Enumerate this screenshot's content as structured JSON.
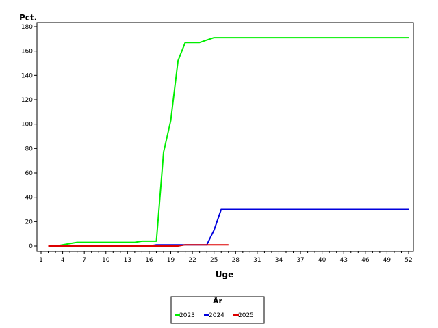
{
  "chart_data": {
    "type": "line",
    "title": "",
    "xlabel": "Uge",
    "ylabel": "Pct.",
    "xlim": [
      0.5,
      52.5
    ],
    "ylim": [
      0,
      180
    ],
    "x_ticks": [
      1,
      4,
      7,
      10,
      13,
      16,
      19,
      22,
      25,
      28,
      31,
      34,
      37,
      40,
      43,
      46,
      49,
      52
    ],
    "y_ticks": [
      0,
      20,
      40,
      60,
      80,
      100,
      120,
      140,
      160,
      180
    ],
    "grid": false,
    "legend": {
      "title": "År",
      "position": "bottom-center",
      "entries": [
        "2023",
        "2024",
        "2025"
      ]
    },
    "series": [
      {
        "name": "2023",
        "color": "#00ee00",
        "points": [
          [
            2,
            0
          ],
          [
            3,
            0
          ],
          [
            4,
            1
          ],
          [
            5,
            2
          ],
          [
            6,
            3
          ],
          [
            7,
            3
          ],
          [
            8,
            3
          ],
          [
            9,
            3
          ],
          [
            10,
            3
          ],
          [
            11,
            3
          ],
          [
            12,
            3
          ],
          [
            13,
            3
          ],
          [
            14,
            3
          ],
          [
            15,
            4
          ],
          [
            16,
            4
          ],
          [
            17,
            4
          ],
          [
            18,
            77
          ],
          [
            19,
            103
          ],
          [
            20,
            152
          ],
          [
            21,
            167
          ],
          [
            22,
            167
          ],
          [
            23,
            167
          ],
          [
            24,
            169
          ],
          [
            25,
            171
          ],
          [
            26,
            171
          ],
          [
            27,
            171
          ],
          [
            28,
            171
          ],
          [
            29,
            171
          ],
          [
            30,
            171
          ],
          [
            31,
            171
          ],
          [
            32,
            171
          ],
          [
            33,
            171
          ],
          [
            34,
            171
          ],
          [
            35,
            171
          ],
          [
            36,
            171
          ],
          [
            37,
            171
          ],
          [
            38,
            171
          ],
          [
            39,
            171
          ],
          [
            40,
            171
          ],
          [
            41,
            171
          ],
          [
            42,
            171
          ],
          [
            43,
            171
          ],
          [
            44,
            171
          ],
          [
            45,
            171
          ],
          [
            46,
            171
          ],
          [
            47,
            171
          ],
          [
            48,
            171
          ],
          [
            49,
            171
          ],
          [
            50,
            171
          ],
          [
            51,
            171
          ],
          [
            52,
            171
          ]
        ]
      },
      {
        "name": "2024",
        "color": "#0000dd",
        "points": [
          [
            2,
            0
          ],
          [
            3,
            0
          ],
          [
            4,
            0
          ],
          [
            5,
            0
          ],
          [
            6,
            0
          ],
          [
            7,
            0
          ],
          [
            8,
            0
          ],
          [
            9,
            0
          ],
          [
            10,
            0
          ],
          [
            11,
            0
          ],
          [
            12,
            0
          ],
          [
            13,
            0
          ],
          [
            14,
            0
          ],
          [
            15,
            0
          ],
          [
            16,
            0
          ],
          [
            17,
            1
          ],
          [
            18,
            1
          ],
          [
            19,
            1
          ],
          [
            20,
            1
          ],
          [
            21,
            1
          ],
          [
            22,
            1
          ],
          [
            23,
            1
          ],
          [
            24,
            1
          ],
          [
            25,
            13
          ],
          [
            26,
            30
          ],
          [
            27,
            30
          ],
          [
            28,
            30
          ],
          [
            29,
            30
          ],
          [
            30,
            30
          ],
          [
            31,
            30
          ],
          [
            32,
            30
          ],
          [
            33,
            30
          ],
          [
            34,
            30
          ],
          [
            35,
            30
          ],
          [
            36,
            30
          ],
          [
            37,
            30
          ],
          [
            38,
            30
          ],
          [
            39,
            30
          ],
          [
            40,
            30
          ],
          [
            41,
            30
          ],
          [
            42,
            30
          ],
          [
            43,
            30
          ],
          [
            44,
            30
          ],
          [
            45,
            30
          ],
          [
            46,
            30
          ],
          [
            47,
            30
          ],
          [
            48,
            30
          ],
          [
            49,
            30
          ],
          [
            50,
            30
          ],
          [
            51,
            30
          ],
          [
            52,
            30
          ]
        ]
      },
      {
        "name": "2025",
        "color": "#dd0000",
        "points": [
          [
            2,
            0
          ],
          [
            3,
            0
          ],
          [
            4,
            0
          ],
          [
            5,
            0
          ],
          [
            6,
            0
          ],
          [
            7,
            0
          ],
          [
            8,
            0
          ],
          [
            9,
            0
          ],
          [
            10,
            0
          ],
          [
            11,
            0
          ],
          [
            12,
            0
          ],
          [
            13,
            0
          ],
          [
            14,
            0
          ],
          [
            15,
            0
          ],
          [
            16,
            0
          ],
          [
            17,
            0
          ],
          [
            18,
            0
          ],
          [
            19,
            0
          ],
          [
            20,
            0
          ],
          [
            21,
            1
          ],
          [
            22,
            1
          ],
          [
            23,
            1
          ],
          [
            24,
            1
          ],
          [
            25,
            1
          ],
          [
            26,
            1
          ],
          [
            27,
            1
          ]
        ]
      }
    ]
  }
}
